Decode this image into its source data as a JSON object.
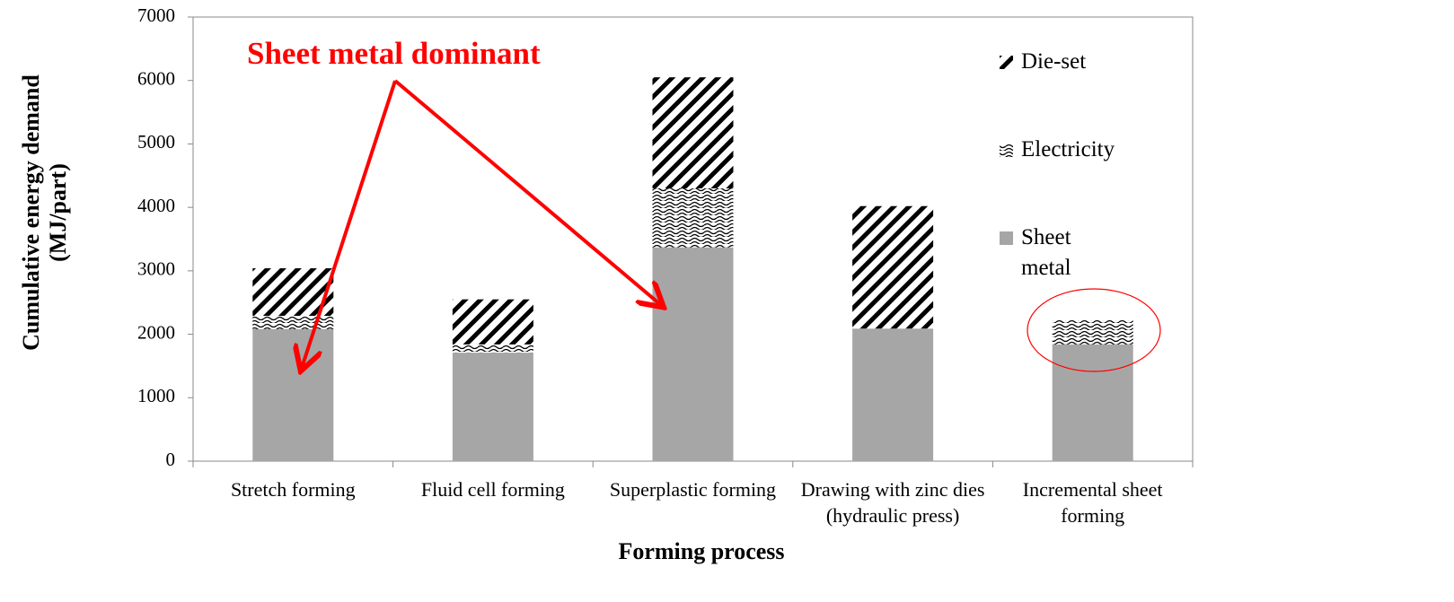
{
  "chart_data": {
    "type": "stacked_bar",
    "y_label": "Cumulative energy demand (MJ/part)",
    "x_label": "Forming process",
    "annotation": "Sheet metal dominant",
    "categories": [
      "Stretch forming",
      "Fluid cell forming",
      "Superplastic forming",
      "Drawing with zinc dies (hydraulic press)",
      "Incremental sheet forming"
    ],
    "series": [
      {
        "name": "Sheet metal",
        "color": "#a6a6a6",
        "pattern": "solid",
        "values": [
          2080,
          1710,
          3370,
          2090,
          1840
        ]
      },
      {
        "name": "Electricity",
        "color": "#000000",
        "pattern": "wave",
        "values": [
          210,
          130,
          930,
          0,
          380
        ]
      },
      {
        "name": "Die-set",
        "color": "#000000",
        "pattern": "diagonal",
        "values": [
          750,
          710,
          1750,
          1930,
          0
        ]
      }
    ],
    "ylim": [
      0,
      7000
    ],
    "yticks": [
      0,
      1000,
      2000,
      3000,
      4000,
      5000,
      6000,
      7000
    ],
    "grid": false
  }
}
